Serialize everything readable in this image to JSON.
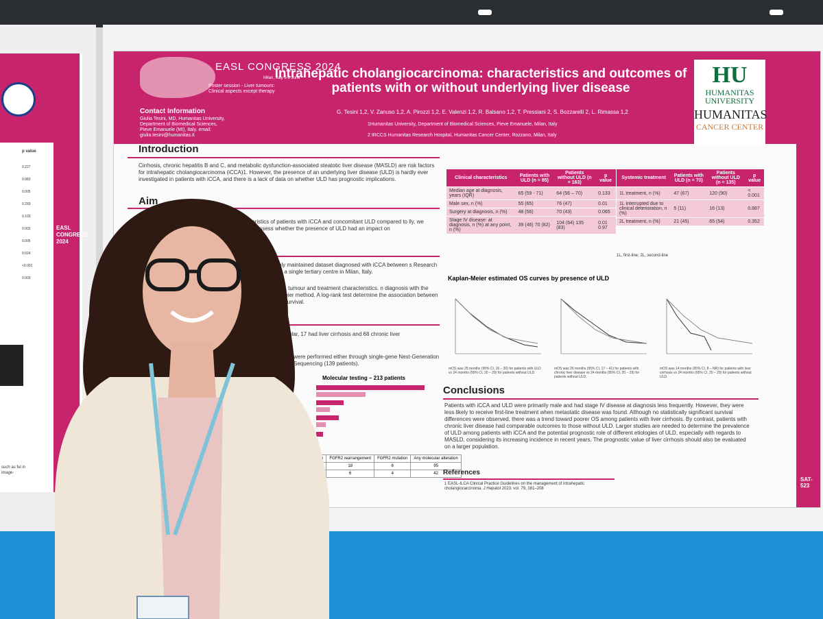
{
  "poster": {
    "title": "Intrahepatic cholangiocarcinoma: characteristics and outcomes of patients with or without underlying liver disease",
    "congress": "EASL CONGRESS 2024",
    "congress_city": "Milan, Italy 5-8 June",
    "session": "Poster session - Liver tumours: Clinical aspects except therapy",
    "contact_title": "Contact Information",
    "contact_body": "Giulia Tesini, MD, Humanitas University, Department of Biomedical Sciences, Pieve Emanuele (MI), Italy. email: giulia.tesini@humanitas.it",
    "authors": "G. Tesini 1,2, V. Zanuso 1,2, A. Pirozzi 1,2, E. Valenzi 1,2, R. Balsano 1,2, T. Pressiani 2, S. Bozzarelli 2, L. Rimassa 1,2",
    "aff1": "1Humanitas University, Department of Biomedical Sciences, Pieve Emanuele, Milan, Italy",
    "aff2": "2 IRCCS Humanitas Research Hospital, Humanitas Cancer Center, Rozzano, Milan, Italy",
    "logo_hu": "HU",
    "logo_hu_sub": "HUMANITAS UNIVERSITY",
    "logo_humanitas": "HUMANITAS",
    "logo_cancer_center": "CANCER CENTER",
    "intro_heading": "Introduction",
    "intro_text": "Cirrhosis, chronic hepatitis B and C, and metabolic dysfunction-associated steatotic liver disease (MASLD) are risk factors for intrahepatic cholangiocarcinoma (iCCA)1. However, the presence of an underlying liver disease (ULD) is hardly ever investigated in patients with iCCA, and there is a lack of data on whether ULD has prognostic implications.",
    "aim_heading": "Aim",
    "aim_text": "characteristics of patients with iCCA and concomitant ULD compared to lly, we aimed to assess whether the presence of ULD had an impact on",
    "methods_text": "spectively maintained dataset diagnosed with iCCA between s Research Hospital, a single tertiary centre in Milan, Italy.",
    "methods_text2": "ographics, tumour and treatment characteristics. n diagnosis with the Kaplan-Meier method. A log-rank test determine the association between ULD and survival.",
    "results_text": "ular, 17 had liver cirrhosis and 68 chronic liver",
    "results_text2": "were performed either through single-gene Next-Generation Sequencing (139 patients).",
    "mol_title": "Molecular testing – 213 patients",
    "mol_table": {
      "headers": [
        "H1 ation",
        "FGFR2 rearrangement",
        "FGFR2 mutation",
        "Any molecular alteration"
      ],
      "row1": [
        "",
        "18",
        "6",
        "95"
      ],
      "row2": [
        "3",
        "6",
        "4",
        "42"
      ]
    },
    "clin_table": {
      "headers": [
        "Clinical characteristics",
        "Patients with ULD (n = 85)",
        "Patients without ULD (n = 163)",
        "p value"
      ],
      "rows": [
        [
          "Median age at diagnosis, years (IQR)",
          "65 (59 - 71)",
          "64 (56 – 70)",
          "0.133"
        ],
        [
          "Male sex, n (%)",
          "55 (65)",
          "76 (47)",
          "0.01"
        ],
        [
          "Surgery at diagnosis, n (%)",
          "48 (56)",
          "70 (43)",
          "0.065"
        ],
        [
          "Stage IV disease: at diagnosis, n (%) at any point, n (%)",
          "39 (46) 70 (82)",
          "104 (64) 135 (83)",
          "0.01 0.97"
        ]
      ]
    },
    "sys_table": {
      "headers": [
        "Systemic treatment",
        "Patients with ULD (n = 70)",
        "Patients without ULD (n = 135)",
        "p value"
      ],
      "rows": [
        [
          "1L treatment, n (%)",
          "47 (67)",
          "120 (90)",
          "< 0.001"
        ],
        [
          "1L interrupted due to clinical deterioration, n (%)",
          "5 (11)",
          "16 (13)",
          "0.887"
        ],
        [
          "2L treatment, n (%)",
          "21 (45)",
          "65 (54)",
          "0.352"
        ]
      ],
      "footnote": "1L, first-line; 2L, second-line"
    },
    "km_title": "Kaplan-Meier estimated OS curves by presence of ULD",
    "km_caps": [
      "mOS was 25 months (95% CI, 16 – 30) for patients with ULD vs 24 months (95% CI, 20 – 29) for patients without ULD.",
      "mOS was 26 months (95% CI, 17 – 41) for patients with chronic liver disease vs 24 months (95% CI, 20 – 29) for patients without ULD.",
      "mOS was 14 months (95% CI, 8 – NR) for patients with liver cirrhosis vs 24 months (95% CI, 20 – 29) for patients without ULD."
    ],
    "conclusions_heading": "Conclusions",
    "conclusions_text": "Patients with iCCA and ULD were primarily male and had stage IV disease at diagnosis less frequently. However, they were less likely to receive first-line treatment when metastatic disease was found. Although no statistically significant survival differences were observed, there was a trend toward poorer OS among patients with liver cirrhosis. By contrast, patients with chronic liver disease had comparable outcomes to those without ULD. Larger studies are needed to determine the prevalence of ULD among patients with iCCA and the potential prognostic role of different etiologies of ULD, especially with regards to MASLD, considering its increasing incidence in recent years. The prognostic value of liver cirrhosis should also be evaluated on a larger population.",
    "references_heading": "References",
    "references_text": "1 EASL-ILCA Clinical Practice Guidelines on the management of intrahepatic cholangiocarcinoma. J Hepatol 2023. vol. 79, 181–208",
    "side_label": "SAT-523"
  },
  "left_poster": {
    "congress": "EASL CONGRESS 2024",
    "col_header": "p value",
    "values": [
      "0.227",
      "0.983",
      "0.005",
      "0.259",
      "0.103",
      "0.002",
      "0.005",
      "0.024",
      "<0.001",
      "0.003"
    ],
    "caption": "such as ful in image-"
  },
  "colors": {
    "poster_magenta": "#c8246e",
    "table_pink": "#f4c9da",
    "floor_blue": "#1f8fd6",
    "hu_green": "#0e6e3d"
  }
}
